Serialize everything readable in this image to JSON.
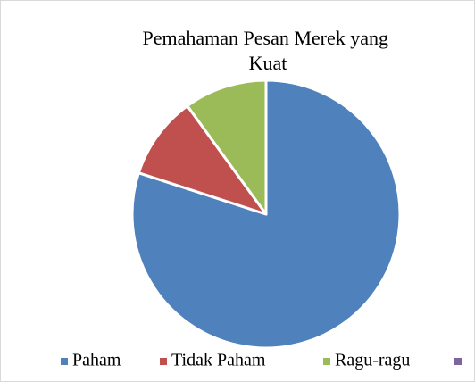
{
  "chart_data": {
    "type": "pie",
    "title": "Pemahaman Pesan Merek yang Kuat",
    "categories": [
      "Paham",
      "Tidak Paham",
      "Ragu-ragu",
      null
    ],
    "values": [
      80,
      10,
      10,
      0
    ],
    "colors": [
      "#4f81bd",
      "#c0504d",
      "#9bbb59",
      "#8064a2"
    ],
    "legend": "bottom"
  }
}
